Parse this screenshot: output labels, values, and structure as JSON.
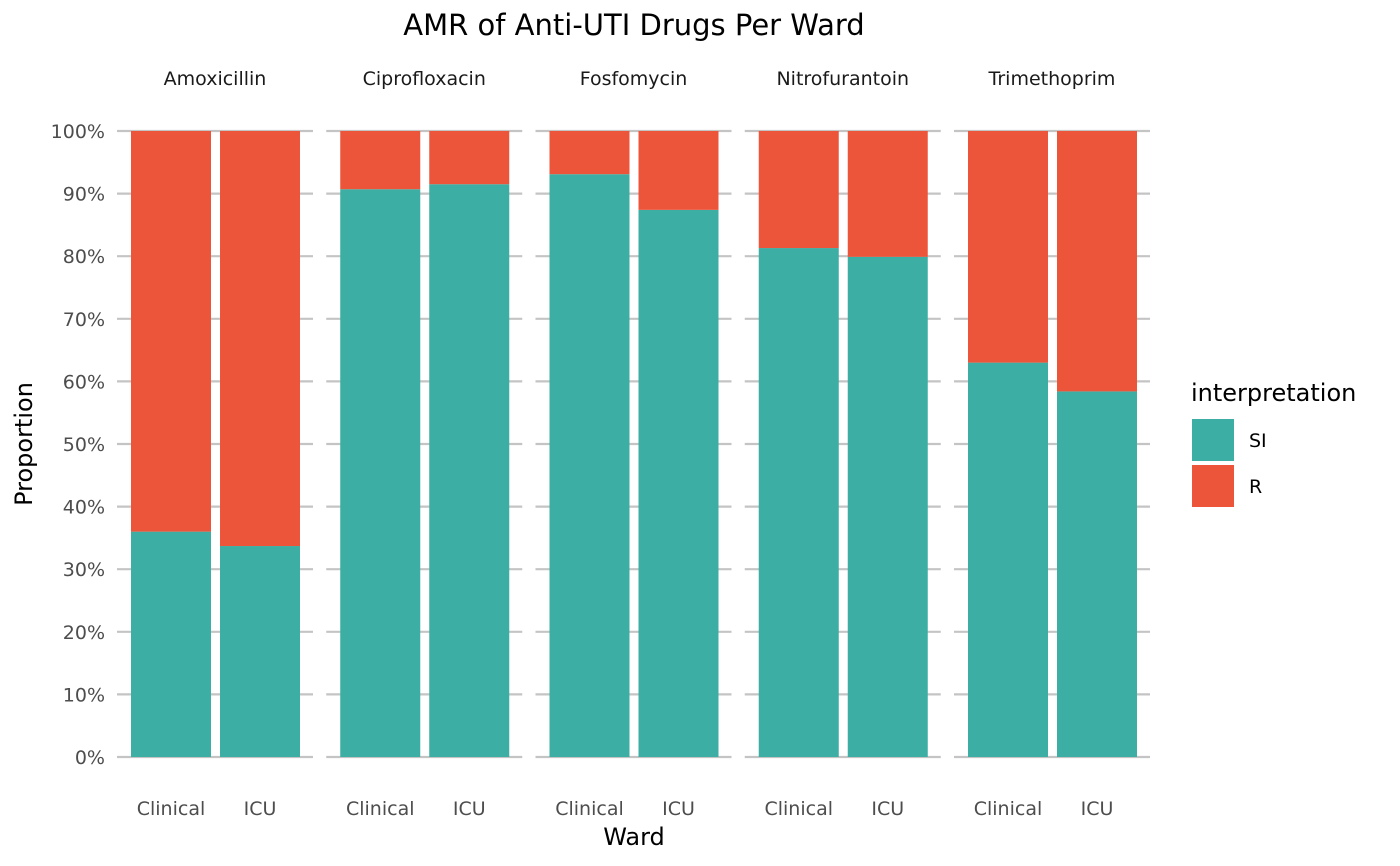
{
  "chart_data": {
    "type": "bar",
    "title": "AMR of Anti-UTI Drugs Per Ward",
    "xlabel": "Ward",
    "ylabel": "Proportion",
    "ylim": [
      0,
      1
    ],
    "y_ticks": [
      "0%",
      "10%",
      "20%",
      "30%",
      "40%",
      "50%",
      "60%",
      "70%",
      "80%",
      "90%",
      "100%"
    ],
    "facets": [
      "Amoxicillin",
      "Ciprofloxacin",
      "Fosfomycin",
      "Nitrofurantoin",
      "Trimethoprim"
    ],
    "categories": [
      "Clinical",
      "ICU"
    ],
    "stacked": true,
    "series": [
      {
        "name": "SI",
        "color": "#3CAEA3",
        "values": [
          [
            0.36,
            0.337
          ],
          [
            0.907,
            0.915
          ],
          [
            0.931,
            0.874
          ],
          [
            0.813,
            0.799
          ],
          [
            0.63,
            0.584
          ]
        ]
      },
      {
        "name": "R",
        "color": "#ED553B",
        "values": [
          [
            0.64,
            0.663
          ],
          [
            0.093,
            0.085
          ],
          [
            0.069,
            0.126
          ],
          [
            0.187,
            0.201
          ],
          [
            0.37,
            0.416
          ]
        ]
      }
    ],
    "legend": {
      "title": "interpretation",
      "position": "right"
    },
    "grid": true
  }
}
